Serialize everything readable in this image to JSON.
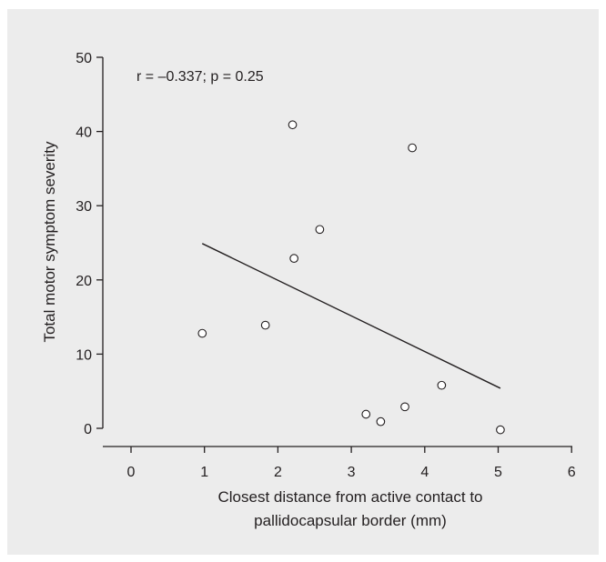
{
  "chart_data": {
    "type": "scatter",
    "annotation": "r = –0.337; p = 0.25",
    "xlabel_line1": "Closest distance from active contact to",
    "xlabel_line2": "pallidocapsular border (mm)",
    "ylabel": "Total motor symptom severity",
    "xlim": [
      0,
      6
    ],
    "ylim": [
      0,
      50
    ],
    "x_ticks": [
      0,
      1,
      2,
      3,
      4,
      5,
      6
    ],
    "y_ticks": [
      0,
      10,
      20,
      30,
      40,
      50
    ],
    "x_tick_labels": [
      "0",
      "1",
      "2",
      "3",
      "4",
      "5",
      "6"
    ],
    "y_tick_labels": [
      "0",
      "10",
      "20",
      "30",
      "40",
      "50"
    ],
    "grid": false,
    "points": [
      {
        "x": 0.97,
        "y": 12.8
      },
      {
        "x": 1.83,
        "y": 13.9
      },
      {
        "x": 2.2,
        "y": 40.9
      },
      {
        "x": 2.22,
        "y": 22.9
      },
      {
        "x": 2.57,
        "y": 26.8
      },
      {
        "x": 3.2,
        "y": 1.9
      },
      {
        "x": 3.4,
        "y": 0.9
      },
      {
        "x": 3.73,
        "y": 2.9
      },
      {
        "x": 3.83,
        "y": 37.8
      },
      {
        "x": 4.23,
        "y": 5.8
      },
      {
        "x": 5.03,
        "y": -0.2
      }
    ],
    "regression_line": {
      "x": [
        0.97,
        5.03
      ],
      "y": [
        24.9,
        5.4
      ]
    },
    "colors": {
      "background": "#ececec",
      "ink": "#231f20",
      "marker_fill": "#ffffff"
    }
  }
}
